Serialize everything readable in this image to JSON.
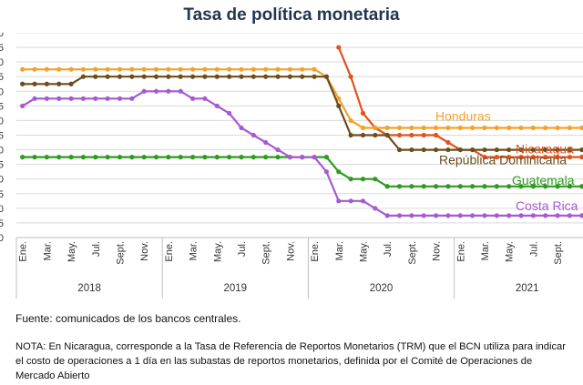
{
  "page": {
    "title": "Tasa de política monetaria",
    "source": "Fuente: comunicados de los bancos centrales.",
    "note": "NOTA: En Nicaragua, corresponde a la Tasa de Referencia de Reportos Monetarios (TRM) que el BCN utiliza para indicar el costo de operaciones a 1 día en las subastas de reportos monetarios, definida por el Comité de Operaciones de Mercado Abierto"
  },
  "chart_data": {
    "type": "line",
    "title": "Tasa de política monetaria",
    "xlabel": "",
    "ylabel": "",
    "ylim": [
      0,
      7
    ],
    "ytick_step": 0.5,
    "grid": true,
    "month_tick_labels": [
      "Ene.",
      "Mar.",
      "May.",
      "Jul.",
      "Sept.",
      "Nov."
    ],
    "month_tick_indices": [
      0,
      2,
      4,
      6,
      8,
      10
    ],
    "years": [
      "2018",
      "2019",
      "2020",
      "2021"
    ],
    "x_start": "2018-01",
    "x_end": "2021-12",
    "series": [
      {
        "name": "Nicaragua",
        "color": "#E0521E",
        "values": [
          null,
          null,
          null,
          null,
          null,
          null,
          null,
          null,
          null,
          null,
          null,
          null,
          null,
          null,
          null,
          null,
          null,
          null,
          null,
          null,
          null,
          null,
          null,
          null,
          null,
          null,
          6.5,
          5.5,
          4.25,
          3.75,
          3.5,
          3.5,
          3.5,
          3.5,
          3.5,
          3.25,
          3.0,
          3.0,
          2.75,
          2.75,
          2.75,
          2.75,
          2.75,
          2.75,
          2.75,
          2.75,
          2.75,
          2.75
        ]
      },
      {
        "name": "Honduras",
        "color": "#F2A12D",
        "values": [
          5.75,
          5.75,
          5.75,
          5.75,
          5.75,
          5.75,
          5.75,
          5.75,
          5.75,
          5.75,
          5.75,
          5.75,
          5.75,
          5.75,
          5.75,
          5.75,
          5.75,
          5.75,
          5.75,
          5.75,
          5.75,
          5.75,
          5.75,
          5.75,
          5.75,
          5.5,
          4.75,
          4.0,
          3.75,
          3.75,
          3.75,
          3.75,
          3.75,
          3.75,
          3.75,
          3.75,
          3.75,
          3.75,
          3.75,
          3.75,
          3.75,
          3.75,
          3.75,
          3.75,
          3.75,
          3.75,
          3.75,
          3.75
        ]
      },
      {
        "name": "República Dominicana",
        "color": "#6B4E1E",
        "values": [
          5.25,
          5.25,
          5.25,
          5.25,
          5.25,
          5.5,
          5.5,
          5.5,
          5.5,
          5.5,
          5.5,
          5.5,
          5.5,
          5.5,
          5.5,
          5.5,
          5.5,
          5.5,
          5.5,
          5.5,
          5.5,
          5.5,
          5.5,
          5.5,
          5.5,
          5.5,
          4.5,
          3.5,
          3.5,
          3.5,
          3.5,
          3.0,
          3.0,
          3.0,
          3.0,
          3.0,
          3.0,
          3.0,
          3.0,
          3.0,
          3.0,
          3.0,
          3.0,
          3.0,
          3.0,
          3.0,
          3.0,
          3.0
        ]
      },
      {
        "name": "Guatemala",
        "color": "#2E9A1E",
        "values": [
          2.75,
          2.75,
          2.75,
          2.75,
          2.75,
          2.75,
          2.75,
          2.75,
          2.75,
          2.75,
          2.75,
          2.75,
          2.75,
          2.75,
          2.75,
          2.75,
          2.75,
          2.75,
          2.75,
          2.75,
          2.75,
          2.75,
          2.75,
          2.75,
          2.75,
          2.75,
          2.25,
          2.0,
          2.0,
          2.0,
          1.75,
          1.75,
          1.75,
          1.75,
          1.75,
          1.75,
          1.75,
          1.75,
          1.75,
          1.75,
          1.75,
          1.75,
          1.75,
          1.75,
          1.75,
          1.75,
          1.75,
          1.75
        ]
      },
      {
        "name": "Costa Rica",
        "color": "#A65AD1",
        "values": [
          4.5,
          4.75,
          4.75,
          4.75,
          4.75,
          4.75,
          4.75,
          4.75,
          4.75,
          4.75,
          5.0,
          5.0,
          5.0,
          5.0,
          4.75,
          4.75,
          4.5,
          4.25,
          3.75,
          3.5,
          3.25,
          3.0,
          2.75,
          2.75,
          2.75,
          2.25,
          1.25,
          1.25,
          1.25,
          1.0,
          0.75,
          0.75,
          0.75,
          0.75,
          0.75,
          0.75,
          0.75,
          0.75,
          0.75,
          0.75,
          0.75,
          0.75,
          0.75,
          0.75,
          0.75,
          0.75,
          0.75,
          0.75
        ]
      }
    ]
  }
}
